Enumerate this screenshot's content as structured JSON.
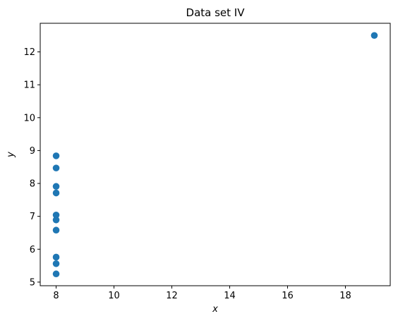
{
  "chart_data": {
    "type": "scatter",
    "title": "Data set IV",
    "xlabel": "x",
    "ylabel": "y",
    "xlim": [
      7.45,
      19.55
    ],
    "ylim": [
      4.89,
      12.87
    ],
    "xticks": [
      8,
      10,
      12,
      14,
      16,
      18
    ],
    "yticks": [
      5,
      6,
      7,
      8,
      9,
      10,
      11,
      12
    ],
    "grid": false,
    "marker_color": "#1f77b4",
    "series": [
      {
        "x": [
          8,
          8,
          8,
          8,
          8,
          8,
          8,
          19,
          8,
          8,
          8
        ],
        "y": [
          6.58,
          5.76,
          7.71,
          8.84,
          8.47,
          7.04,
          5.25,
          12.5,
          5.56,
          7.91,
          6.89
        ]
      }
    ]
  }
}
